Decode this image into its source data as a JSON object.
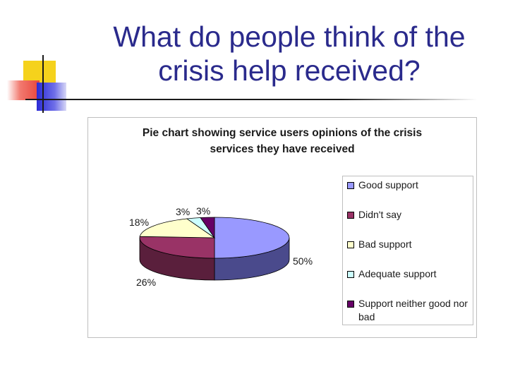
{
  "slide": {
    "title_line1": "What do people think of the",
    "title_line2": "crisis help received?"
  },
  "colors": {
    "title": "#2a2a8c",
    "deco_yellow": "#f5d21c",
    "deco_red": "#e8463c",
    "deco_blue": "#2b2bd6"
  },
  "chart_data": {
    "type": "pie",
    "title_line1": "Pie chart showing service users opinions of the crisis",
    "title_line2": "services they have received",
    "legend_position": "right",
    "slices": [
      {
        "name": "Good support",
        "value": 50,
        "label": "50%",
        "color": "#9999ff",
        "side": "#4a4a8c"
      },
      {
        "name": "Didn't say",
        "value": 26,
        "label": "26%",
        "color": "#993366",
        "side": "#5a1f3c"
      },
      {
        "name": "Bad support",
        "value": 18,
        "label": "18%",
        "color": "#ffffcc",
        "side": "#bdbd8a"
      },
      {
        "name": "Adequate support",
        "value": 3,
        "label": "3%",
        "color": "#ccffff",
        "side": "#8ab8b8"
      },
      {
        "name": "Support neither good nor bad",
        "value": 3,
        "label": "3%",
        "color": "#660066",
        "side": "#330033"
      }
    ]
  }
}
